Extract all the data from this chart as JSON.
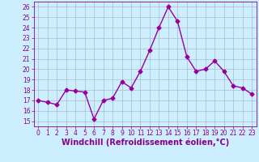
{
  "x": [
    0,
    1,
    2,
    3,
    4,
    5,
    6,
    7,
    8,
    9,
    10,
    11,
    12,
    13,
    14,
    15,
    16,
    17,
    18,
    19,
    20,
    21,
    22,
    23
  ],
  "y": [
    17.0,
    16.8,
    16.6,
    18.0,
    17.9,
    17.8,
    15.2,
    17.0,
    17.2,
    18.8,
    18.2,
    19.8,
    21.8,
    24.0,
    26.0,
    24.6,
    21.2,
    19.8,
    20.0,
    20.8,
    19.8,
    18.4,
    18.2,
    17.6
  ],
  "line_color": "#990099",
  "marker": "D",
  "markersize": 2.5,
  "linewidth": 1.0,
  "bg_color": "#cceeff",
  "grid_color": "#aabbcc",
  "xlabel": "Windchill (Refroidissement éolien,°C)",
  "xlabel_color": "#880088",
  "ylabel": "",
  "ylim": [
    14.5,
    26.5
  ],
  "xlim": [
    -0.5,
    23.5
  ],
  "yticks": [
    15,
    16,
    17,
    18,
    19,
    20,
    21,
    22,
    23,
    24,
    25,
    26
  ],
  "xticks": [
    0,
    1,
    2,
    3,
    4,
    5,
    6,
    7,
    8,
    9,
    10,
    11,
    12,
    13,
    14,
    15,
    16,
    17,
    18,
    19,
    20,
    21,
    22,
    23
  ],
  "tick_color": "#880088",
  "tick_fontsize": 5.5,
  "xlabel_fontsize": 7.0
}
